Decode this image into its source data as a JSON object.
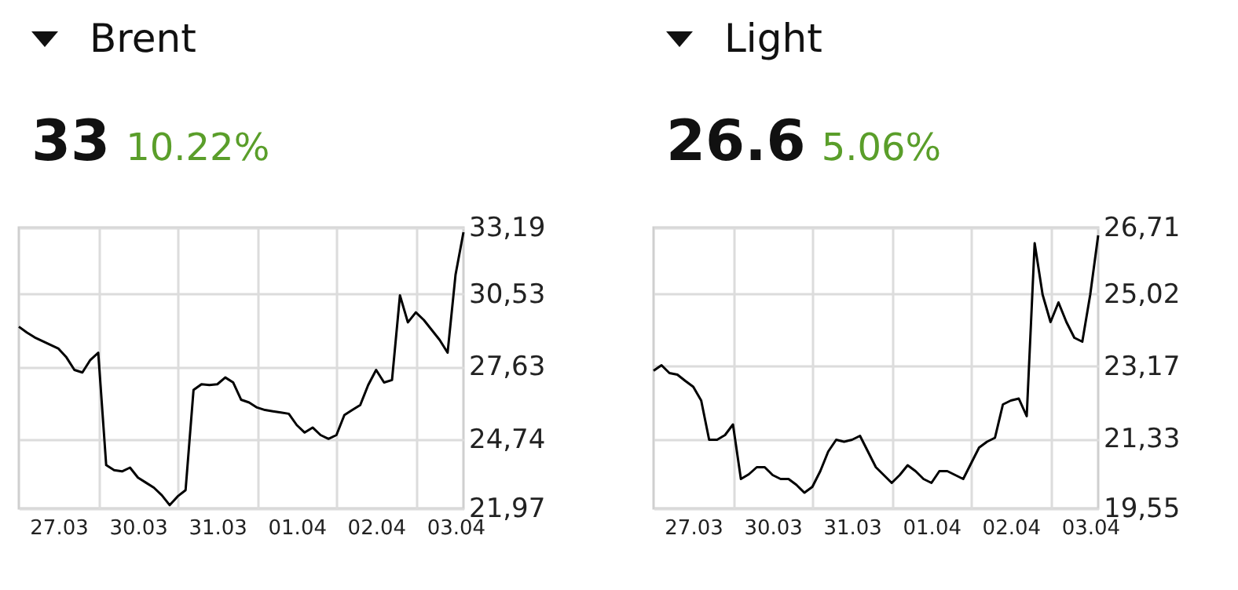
{
  "chart_data": [
    {
      "type": "line",
      "title": "Brent",
      "subtitle": "33",
      "annotations": [
        "10.22%"
      ],
      "grid": true,
      "categories": [
        null,
        null,
        null,
        null,
        null,
        "27.03",
        null,
        null,
        null,
        null,
        null,
        null,
        null,
        null,
        null,
        "30.03",
        null,
        null,
        null,
        null,
        null,
        null,
        null,
        null,
        null,
        "31.03",
        null,
        null,
        null,
        null,
        null,
        null,
        null,
        null,
        null,
        "01.04",
        null,
        null,
        null,
        null,
        null,
        null,
        null,
        null,
        null,
        "02.04",
        null,
        null,
        null,
        null,
        null,
        null,
        null,
        null,
        null,
        "03.04",
        null
      ],
      "series": [
        {
          "color": "#000000",
          "values": [
            29.23,
            29.0,
            28.8,
            28.65,
            28.5,
            28.35,
            28.0,
            27.5,
            27.4,
            27.9,
            28.19,
            23.7,
            23.5,
            23.45,
            23.6,
            23.2,
            23.0,
            22.8,
            22.5,
            22.1,
            22.45,
            22.7,
            26.7,
            26.93,
            26.9,
            26.93,
            27.2,
            27.0,
            26.31,
            26.2,
            26.0,
            25.9,
            25.85,
            25.8,
            25.75,
            25.3,
            25.0,
            25.2,
            24.9,
            24.75,
            24.9,
            25.7,
            25.9,
            26.1,
            26.9,
            27.5,
            27.0,
            27.1,
            30.48,
            29.4,
            29.8,
            29.5,
            29.1,
            28.7,
            28.19,
            31.3,
            33.0
          ]
        }
      ],
      "ylim": [
        21.97,
        33.19
      ],
      "yticks": [
        {
          "value": 21.97,
          "label": "21,97"
        },
        {
          "value": 24.74,
          "label": "24,74"
        },
        {
          "value": 27.63,
          "label": "27,63"
        },
        {
          "value": 30.53,
          "label": "30,53"
        },
        {
          "value": 33.19,
          "label": "33,19"
        }
      ]
    },
    {
      "type": "line",
      "title": "Light",
      "subtitle": "26.6",
      "annotations": [
        "5.06%"
      ],
      "grid": true,
      "categories": [
        null,
        null,
        null,
        null,
        null,
        "27.03",
        null,
        null,
        null,
        null,
        null,
        null,
        null,
        null,
        null,
        "30.03",
        null,
        null,
        null,
        null,
        null,
        null,
        null,
        null,
        null,
        "31.03",
        null,
        null,
        null,
        null,
        null,
        null,
        null,
        null,
        null,
        "01.04",
        null,
        null,
        null,
        null,
        null,
        null,
        null,
        null,
        null,
        "02.04",
        null,
        null,
        null,
        null,
        null,
        null,
        null,
        null,
        null,
        "03.04",
        null
      ],
      "series": [
        {
          "color": "#000000",
          "values": [
            23.06,
            23.2,
            23.0,
            22.96,
            22.8,
            22.65,
            22.3,
            21.3,
            21.3,
            21.42,
            21.69,
            20.3,
            20.42,
            20.6,
            20.6,
            20.4,
            20.3,
            20.3,
            20.15,
            19.95,
            20.1,
            20.5,
            21.0,
            21.3,
            21.25,
            21.3,
            21.4,
            21.0,
            20.6,
            20.4,
            20.2,
            20.4,
            20.65,
            20.5,
            20.3,
            20.2,
            20.5,
            20.5,
            20.4,
            20.3,
            20.7,
            21.1,
            21.25,
            21.35,
            22.2,
            22.3,
            22.35,
            21.9,
            26.31,
            25.0,
            24.3,
            24.8,
            24.3,
            23.9,
            23.8,
            25.0,
            26.51
          ]
        }
      ],
      "ylim": [
        19.55,
        26.71
      ],
      "yticks": [
        {
          "value": 19.55,
          "label": "19,55"
        },
        {
          "value": 21.33,
          "label": "21,33"
        },
        {
          "value": 23.17,
          "label": "23,17"
        },
        {
          "value": 25.02,
          "label": "25,02"
        },
        {
          "value": 26.71,
          "label": "26,71"
        }
      ]
    }
  ]
}
